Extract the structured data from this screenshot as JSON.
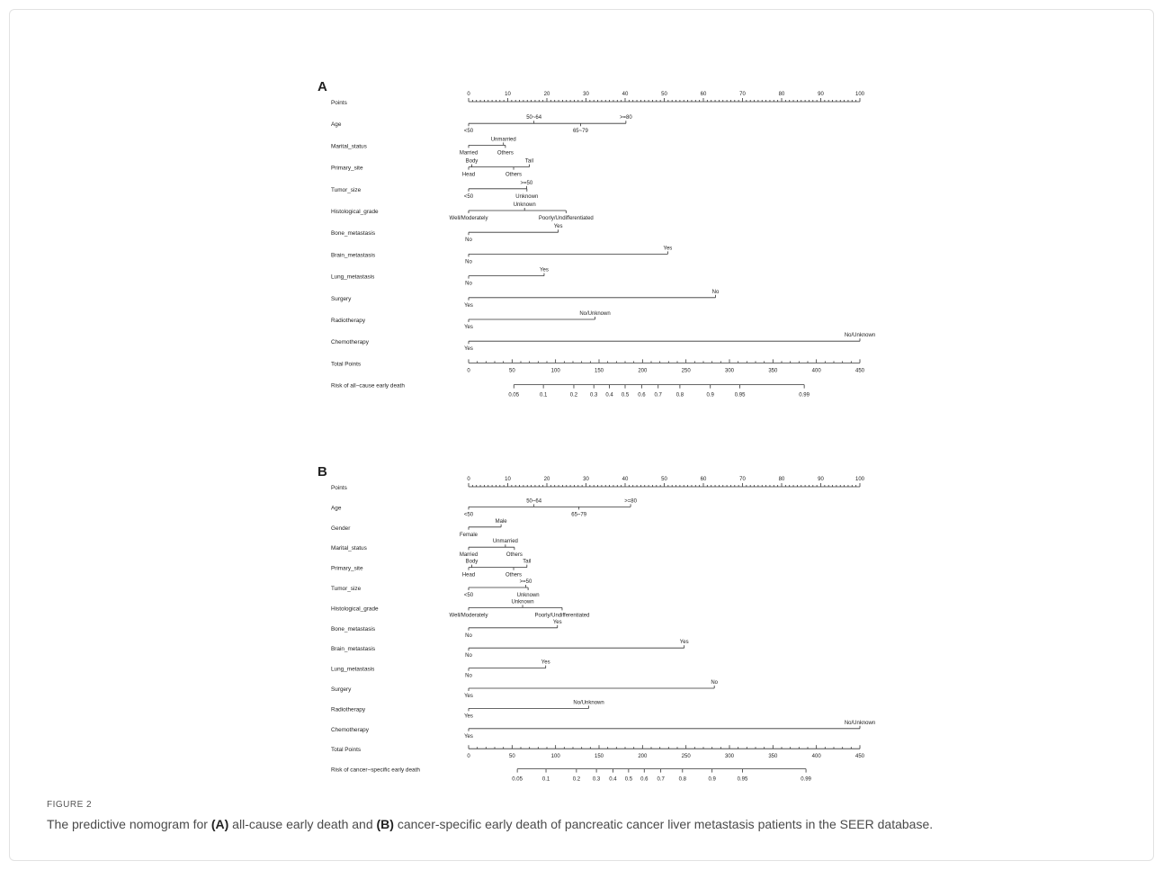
{
  "figure": {
    "label": "FIGURE 2",
    "caption": {
      "part1": "The predictive nomogram for ",
      "a_label": "(A)",
      "part2": " all-cause early death and ",
      "b_label": "(B)",
      "part3": " cancer-specific early death of pancreatic cancer liver metastasis patients in the SEER database."
    }
  },
  "panels": [
    {
      "letter": "A",
      "rows": [
        {
          "label": "Points",
          "kind": "points_axis",
          "ticks": [
            0,
            10,
            20,
            30,
            40,
            50,
            60,
            70,
            80,
            90,
            100
          ]
        },
        {
          "label": "Age",
          "kind": "variable",
          "levels": [
            {
              "name": "<50",
              "points": 0,
              "side": "below"
            },
            {
              "name": "50~64",
              "points": 16.7,
              "side": "above"
            },
            {
              "name": "65~79",
              "points": 28.6,
              "side": "below"
            },
            {
              "name": ">=80",
              "points": 40.2,
              "side": "above"
            }
          ]
        },
        {
          "label": "Marital_status",
          "kind": "variable",
          "levels": [
            {
              "name": "Married",
              "points": 0,
              "side": "below"
            },
            {
              "name": "Others",
              "points": 9.4,
              "side": "below"
            },
            {
              "name": "Unmarried",
              "points": 8.9,
              "side": "above"
            }
          ]
        },
        {
          "label": "Primary_site",
          "kind": "variable",
          "levels": [
            {
              "name": "Head",
              "points": 0,
              "side": "below"
            },
            {
              "name": "Body",
              "points": 0.8,
              "side": "above"
            },
            {
              "name": "Others",
              "points": 11.5,
              "side": "below"
            },
            {
              "name": "Tail",
              "points": 15.5,
              "side": "above"
            }
          ]
        },
        {
          "label": "Tumor_size",
          "kind": "variable",
          "levels": [
            {
              "name": "<50",
              "points": 0,
              "side": "below"
            },
            {
              "name": ">=50",
              "points": 14.8,
              "side": "above"
            },
            {
              "name": "Unknown",
              "points": 14.9,
              "side": "below"
            }
          ]
        },
        {
          "label": "Histological_grade",
          "kind": "variable",
          "levels": [
            {
              "name": "Well/Moderately",
              "points": 0,
              "side": "below"
            },
            {
              "name": "Unknown",
              "points": 14.3,
              "side": "above"
            },
            {
              "name": "Poorly/Undifferentiated",
              "points": 24.9,
              "side": "below"
            }
          ]
        },
        {
          "label": "Bone_metastasis",
          "kind": "variable",
          "levels": [
            {
              "name": "No",
              "points": 0,
              "side": "below"
            },
            {
              "name": "Yes",
              "points": 22.9,
              "side": "above"
            }
          ]
        },
        {
          "label": "Brain_metastasis",
          "kind": "variable",
          "levels": [
            {
              "name": "No",
              "points": 0,
              "side": "below"
            },
            {
              "name": "Yes",
              "points": 50.9,
              "side": "above"
            }
          ]
        },
        {
          "label": "Lung_metastasis",
          "kind": "variable",
          "levels": [
            {
              "name": "No",
              "points": 0,
              "side": "below"
            },
            {
              "name": "Yes",
              "points": 19.3,
              "side": "above"
            }
          ]
        },
        {
          "label": "Surgery",
          "kind": "variable",
          "levels": [
            {
              "name": "Yes",
              "points": 0,
              "side": "below"
            },
            {
              "name": "No",
              "points": 63.1,
              "side": "above"
            }
          ]
        },
        {
          "label": "Radiotherapy",
          "kind": "variable",
          "levels": [
            {
              "name": "Yes",
              "points": 0,
              "side": "below"
            },
            {
              "name": "No/Unknown",
              "points": 32.3,
              "side": "above"
            }
          ]
        },
        {
          "label": "Chemotherapy",
          "kind": "variable",
          "levels": [
            {
              "name": "Yes",
              "points": 0,
              "side": "below"
            },
            {
              "name": "No/Unknown",
              "points": 100,
              "side": "above"
            }
          ]
        },
        {
          "label": "Total Points",
          "kind": "total_axis",
          "ticks": [
            0,
            50,
            100,
            150,
            200,
            250,
            300,
            350,
            400,
            450
          ]
        },
        {
          "label": "Risk of all−cause early death",
          "kind": "risk_axis",
          "ticks": [
            {
              "v": "0.05",
              "tp": 52
            },
            {
              "v": "0.1",
              "tp": 86
            },
            {
              "v": "0.2",
              "tp": 121
            },
            {
              "v": "0.3",
              "tp": 144
            },
            {
              "v": "0.4",
              "tp": 162
            },
            {
              "v": "0.5",
              "tp": 180
            },
            {
              "v": "0.6",
              "tp": 199
            },
            {
              "v": "0.7",
              "tp": 218
            },
            {
              "v": "0.8",
              "tp": 243
            },
            {
              "v": "0.9",
              "tp": 278
            },
            {
              "v": "0.95",
              "tp": 312
            },
            {
              "v": "0.99",
              "tp": 386
            }
          ]
        }
      ]
    },
    {
      "letter": "B",
      "rows": [
        {
          "label": "Points",
          "kind": "points_axis",
          "ticks": [
            0,
            10,
            20,
            30,
            40,
            50,
            60,
            70,
            80,
            90,
            100
          ]
        },
        {
          "label": "Age",
          "kind": "variable",
          "levels": [
            {
              "name": "<50",
              "points": 0,
              "side": "below"
            },
            {
              "name": "50~64",
              "points": 16.7,
              "side": "above"
            },
            {
              "name": "65~79",
              "points": 28.2,
              "side": "below"
            },
            {
              "name": ">=80",
              "points": 41.4,
              "side": "above"
            }
          ]
        },
        {
          "label": "Gender",
          "kind": "variable",
          "levels": [
            {
              "name": "Female",
              "points": 0,
              "side": "below"
            },
            {
              "name": "Male",
              "points": 8.3,
              "side": "above"
            }
          ]
        },
        {
          "label": "Marital_status",
          "kind": "variable",
          "levels": [
            {
              "name": "Married",
              "points": 0,
              "side": "below"
            },
            {
              "name": "Others",
              "points": 11.7,
              "side": "below"
            },
            {
              "name": "Unmarried",
              "points": 9.4,
              "side": "above"
            }
          ]
        },
        {
          "label": "Primary_site",
          "kind": "variable",
          "levels": [
            {
              "name": "Head",
              "points": 0,
              "side": "below"
            },
            {
              "name": "Body",
              "points": 0.8,
              "side": "above"
            },
            {
              "name": "Others",
              "points": 11.5,
              "side": "below"
            },
            {
              "name": "Tail",
              "points": 14.9,
              "side": "above"
            }
          ]
        },
        {
          "label": "Tumor_size",
          "kind": "variable",
          "levels": [
            {
              "name": "<50",
              "points": 0,
              "side": "below"
            },
            {
              "name": ">=50",
              "points": 14.6,
              "side": "above"
            },
            {
              "name": "Unknown",
              "points": 15.2,
              "side": "below"
            }
          ]
        },
        {
          "label": "Histological_grade",
          "kind": "variable",
          "levels": [
            {
              "name": "Well/Moderately",
              "points": 0,
              "side": "below"
            },
            {
              "name": "Unknown",
              "points": 13.8,
              "side": "above"
            },
            {
              "name": "Poorly/Undifferentiated",
              "points": 23.9,
              "side": "below"
            }
          ]
        },
        {
          "label": "Bone_metastasis",
          "kind": "variable",
          "levels": [
            {
              "name": "No",
              "points": 0,
              "side": "below"
            },
            {
              "name": "Yes",
              "points": 22.7,
              "side": "above"
            }
          ]
        },
        {
          "label": "Brain_metastasis",
          "kind": "variable",
          "levels": [
            {
              "name": "No",
              "points": 0,
              "side": "below"
            },
            {
              "name": "Yes",
              "points": 55.1,
              "side": "above"
            }
          ]
        },
        {
          "label": "Lung_metastasis",
          "kind": "variable",
          "levels": [
            {
              "name": "No",
              "points": 0,
              "side": "below"
            },
            {
              "name": "Yes",
              "points": 19.7,
              "side": "above"
            }
          ]
        },
        {
          "label": "Surgery",
          "kind": "variable",
          "levels": [
            {
              "name": "Yes",
              "points": 0,
              "side": "below"
            },
            {
              "name": "No",
              "points": 62.8,
              "side": "above"
            }
          ]
        },
        {
          "label": "Radiotherapy",
          "kind": "variable",
          "levels": [
            {
              "name": "Yes",
              "points": 0,
              "side": "below"
            },
            {
              "name": "No/Unknown",
              "points": 30.7,
              "side": "above"
            }
          ]
        },
        {
          "label": "Chemotherapy",
          "kind": "variable",
          "levels": [
            {
              "name": "Yes",
              "points": 0,
              "side": "below"
            },
            {
              "name": "No/Unknown",
              "points": 100,
              "side": "above"
            }
          ]
        },
        {
          "label": "Total Points",
          "kind": "total_axis",
          "ticks": [
            0,
            50,
            100,
            150,
            200,
            250,
            300,
            350,
            400,
            450
          ]
        },
        {
          "label": "Risk of cancer−specific early death",
          "kind": "risk_axis",
          "ticks": [
            {
              "v": "0.05",
              "tp": 56
            },
            {
              "v": "0.1",
              "tp": 89
            },
            {
              "v": "0.2",
              "tp": 124
            },
            {
              "v": "0.3",
              "tp": 147
            },
            {
              "v": "0.4",
              "tp": 166
            },
            {
              "v": "0.5",
              "tp": 184
            },
            {
              "v": "0.6",
              "tp": 202
            },
            {
              "v": "0.7",
              "tp": 221
            },
            {
              "v": "0.8",
              "tp": 246
            },
            {
              "v": "0.9",
              "tp": 280
            },
            {
              "v": "0.95",
              "tp": 315
            },
            {
              "v": "0.99",
              "tp": 388
            }
          ]
        }
      ]
    }
  ]
}
